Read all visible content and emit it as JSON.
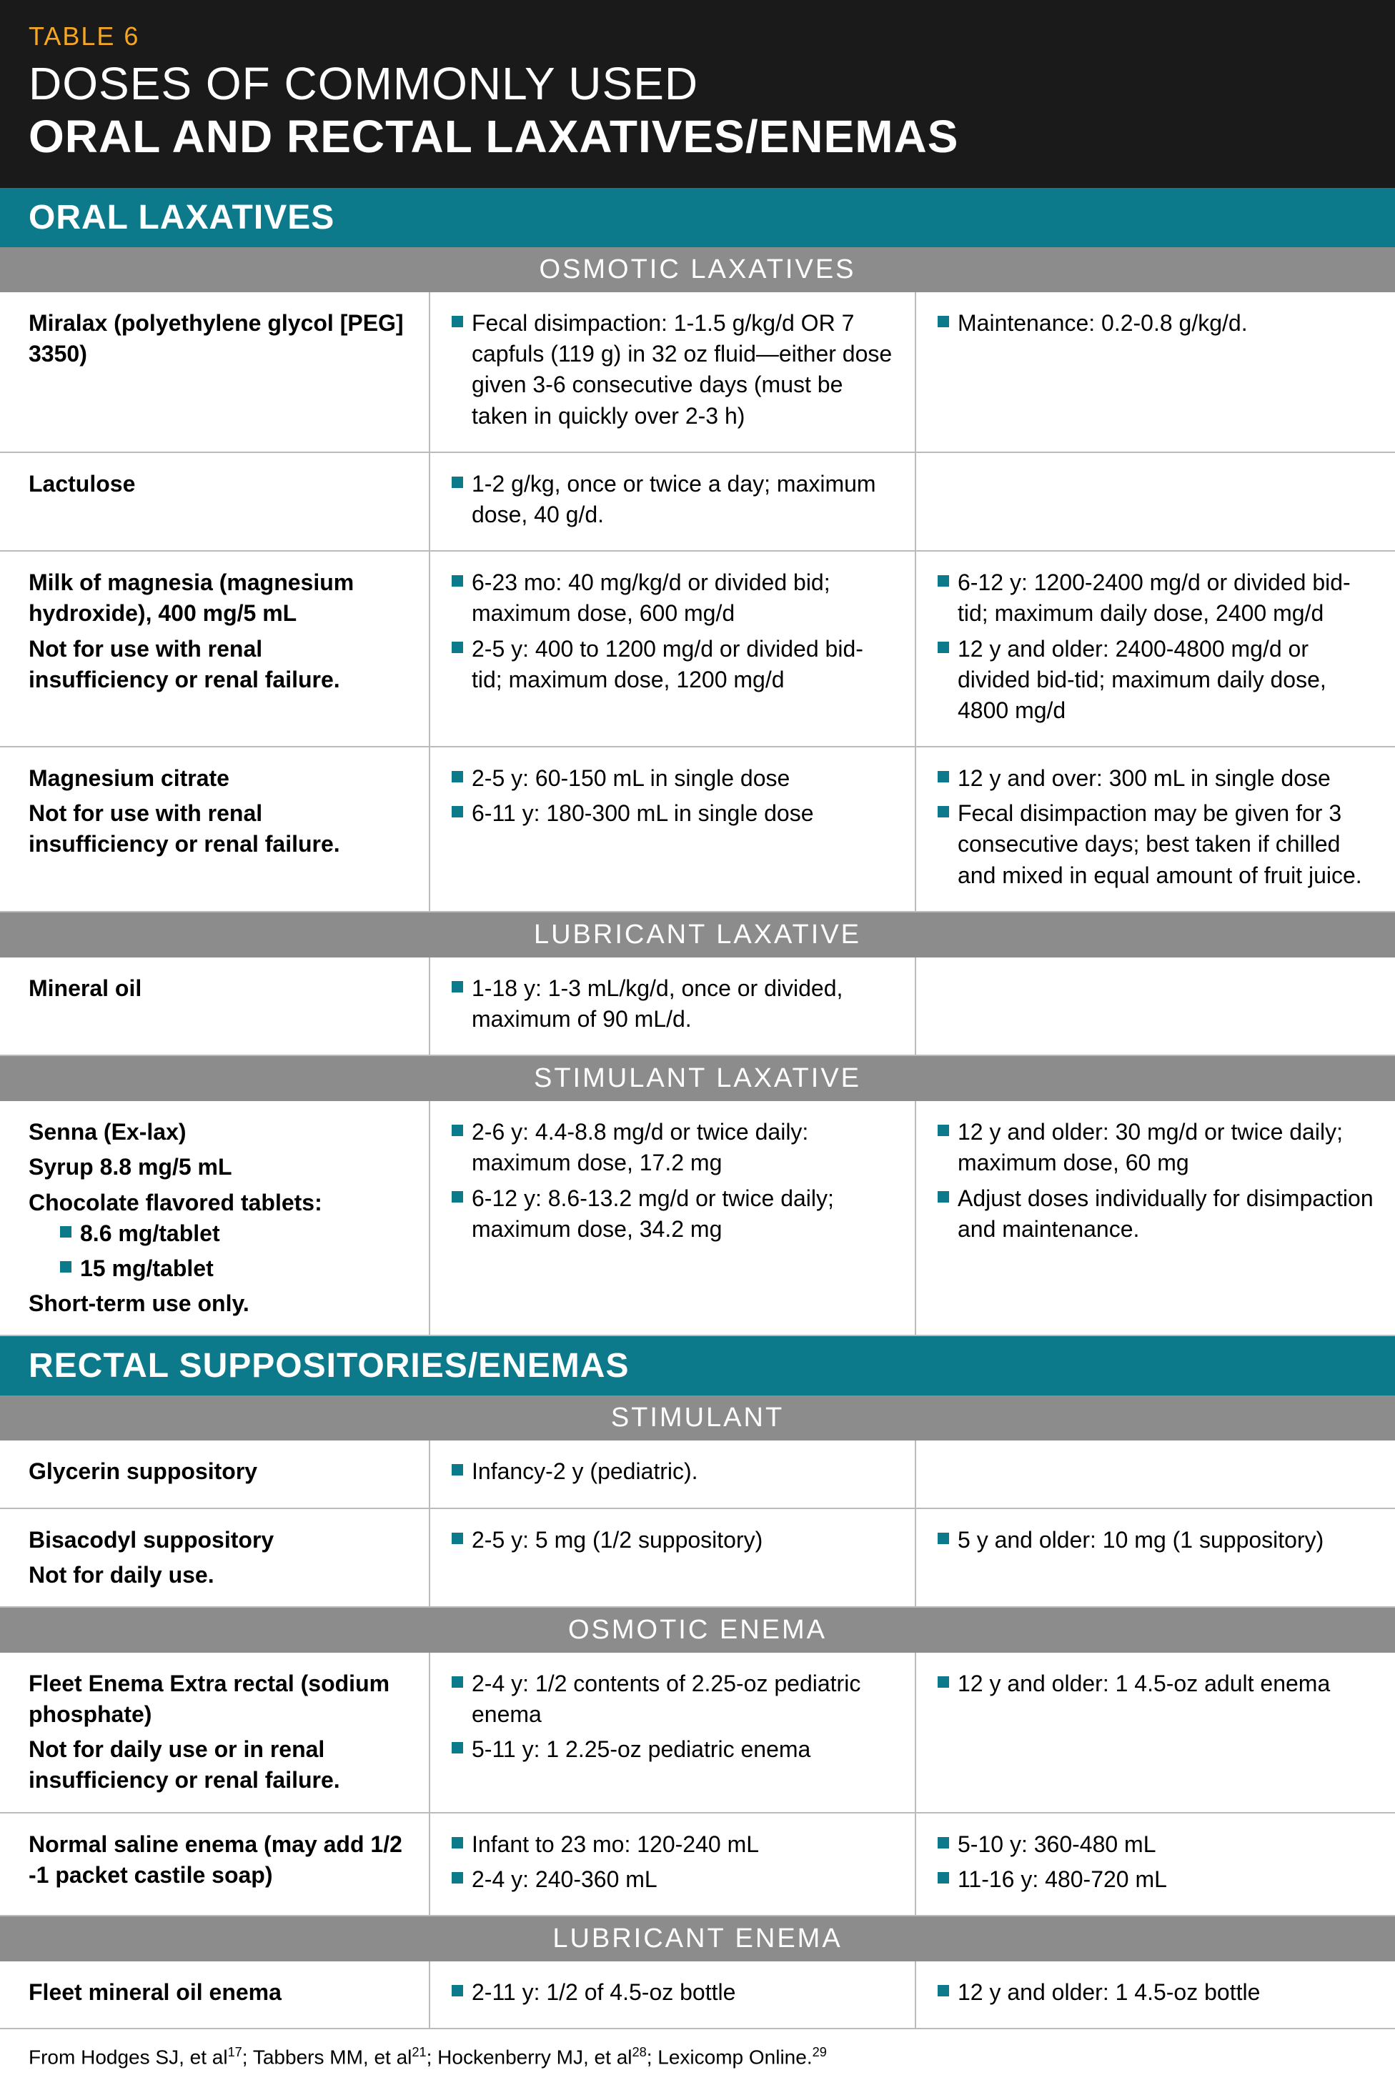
{
  "colors": {
    "header_bg": "#1a1a1a",
    "accent_orange": "#f5a623",
    "section_teal": "#0d7a8c",
    "category_gray": "#8c8c8c",
    "border_gray": "#bbbbbb",
    "bullet_teal": "#0d7a8c",
    "text_white": "#ffffff",
    "text_black": "#000000"
  },
  "typography": {
    "table_label_size": 36,
    "title_size": 64,
    "section_header_size": 48,
    "category_header_size": 38,
    "body_size": 32,
    "footer_size": 28
  },
  "layout": {
    "total_width": 1952,
    "col1_width": 600,
    "col2_width": 680,
    "col3_width": 672
  },
  "header": {
    "table_label": "TABLE 6",
    "title_line1": "DOSES OF COMMONLY USED",
    "title_line2": "ORAL AND RECTAL LAXATIVES/ENEMAS"
  },
  "sections": [
    {
      "title": "ORAL LAXATIVES",
      "categories": [
        {
          "title": "OSMOTIC LAXATIVES",
          "rows": [
            {
              "name_lines": [
                "Miralax (polyethylene glycol [PEG] 3350)"
              ],
              "col2": [
                "Fecal disimpaction: 1-1.5 g/kg/d OR 7 capfuls (119 g) in 32 oz fluid—either dose given 3-6 consecutive days (must be taken in quickly over 2-3 h)"
              ],
              "col3": [
                "Maintenance:  0.2-0.8 g/kg/d."
              ]
            },
            {
              "name_lines": [
                "Lactulose"
              ],
              "col2": [
                "1-2 g/kg, once or twice a day; maximum dose, 40 g/d."
              ],
              "col3": []
            },
            {
              "name_lines": [
                "Milk of magnesia (magnesium hydroxide), 400 mg/5 mL",
                "Not for use with renal insufficiency or renal failure."
              ],
              "col2": [
                "6-23 mo: 40 mg/kg/d or divided bid; maximum dose, 600 mg/d",
                "2-5 y: 400 to 1200 mg/d or divided bid-tid; maximum dose, 1200 mg/d"
              ],
              "col3": [
                "6-12 y: 1200-2400 mg/d or divided bid-tid; maximum daily dose, 2400 mg/d",
                "12 y and older: 2400-4800 mg/d or divided bid-tid; maximum daily dose, 4800 mg/d"
              ]
            },
            {
              "name_lines": [
                "Magnesium citrate",
                "Not for use with renal insufficiency or renal failure."
              ],
              "col2": [
                "2-5 y: 60-150 mL in single dose",
                "6-11 y: 180-300 mL in single dose"
              ],
              "col3": [
                "12 y and over: 300 mL in single dose",
                "Fecal disimpaction may be given for 3 consecutive days; best taken if chilled and mixed in equal amount of fruit juice."
              ]
            }
          ]
        },
        {
          "title": "LUBRICANT LAXATIVE",
          "rows": [
            {
              "name_lines": [
                "Mineral oil"
              ],
              "col2": [
                "1-18 y: 1-3 mL/kg/d, once or divided, maximum of 90 mL/d."
              ],
              "col3": []
            }
          ]
        },
        {
          "title": "STIMULANT LAXATIVE",
          "rows": [
            {
              "name_lines": [
                "Senna (Ex-lax)",
                "Syrup 8.8 mg/5 mL",
                "Chocolate flavored tablets:"
              ],
              "nested_bullets": [
                "8.6 mg/tablet",
                "15 mg/tablet"
              ],
              "post_lines": [
                "Short-term use only."
              ],
              "col2": [
                "2-6 y: 4.4-8.8 mg/d or twice daily: maximum dose, 17.2 mg",
                "6-12 y: 8.6-13.2 mg/d or twice daily; maximum dose, 34.2 mg"
              ],
              "col3": [
                "12 y and older: 30 mg/d or twice daily; maximum dose, 60 mg",
                "Adjust doses individually for disimpaction and maintenance."
              ]
            }
          ]
        }
      ]
    },
    {
      "title": "RECTAL SUPPOSITORIES/ENEMAS",
      "categories": [
        {
          "title": "STIMULANT",
          "rows": [
            {
              "name_lines": [
                "Glycerin suppository"
              ],
              "col2": [
                "Infancy-2 y (pediatric)."
              ],
              "col3": []
            },
            {
              "name_lines": [
                "Bisacodyl suppository",
                "Not for daily use."
              ],
              "col2": [
                "2-5 y: 5 mg (1/2 suppository)"
              ],
              "col3": [
                "5 y and older: 10 mg (1 suppository)"
              ]
            }
          ]
        },
        {
          "title": "OSMOTIC ENEMA",
          "rows": [
            {
              "name_lines": [
                "Fleet Enema Extra rectal (sodium phosphate)",
                "Not for daily use or in renal insufficiency or renal failure."
              ],
              "col2": [
                "2-4 y: 1/2 contents of 2.25-oz pediatric enema",
                "5-11 y: 1 2.25-oz pediatric enema"
              ],
              "col3": [
                "12 y and older: 1 4.5-oz adult enema"
              ]
            },
            {
              "name_lines": [
                "Normal saline enema (may add 1/2 -1 packet castile soap)"
              ],
              "col2": [
                "Infant to 23 mo: 120-240 mL",
                "2-4 y: 240-360 mL"
              ],
              "col3": [
                "5-10 y: 360-480 mL",
                "11-16 y: 480-720 mL"
              ]
            }
          ]
        },
        {
          "title": "LUBRICANT ENEMA",
          "rows": [
            {
              "name_lines": [
                "Fleet mineral oil enema"
              ],
              "col2": [
                "2-11 y: 1/2 of 4.5-oz bottle"
              ],
              "col3": [
                "12 y and older: 1 4.5-oz bottle"
              ]
            }
          ]
        }
      ]
    }
  ],
  "footer": {
    "prefix": "From Hodges SJ, et al",
    "ref1": "17",
    "mid1": "; Tabbers MM, et al",
    "ref2": "21",
    "mid2": "; Hockenberry MJ, et al",
    "ref3": "28",
    "mid3": "; Lexicomp Online.",
    "ref4": "29"
  }
}
